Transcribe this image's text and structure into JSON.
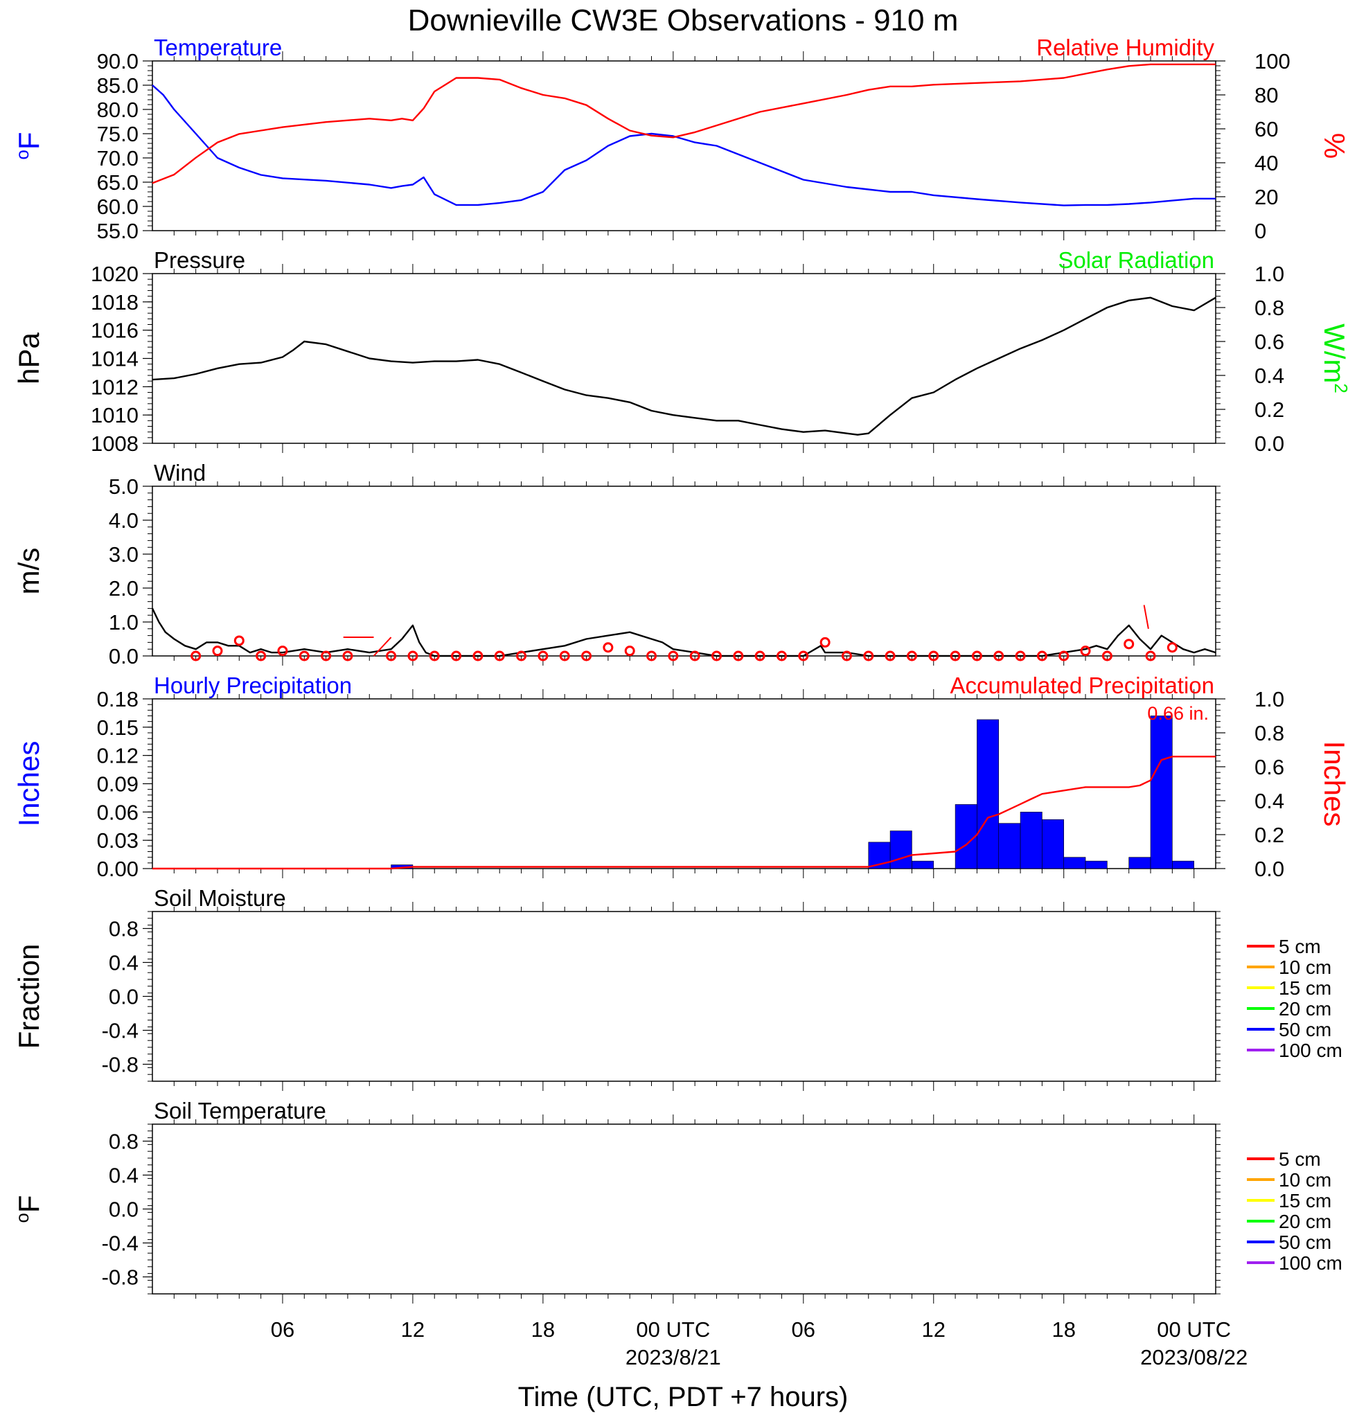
{
  "title": "Downieville CW3E Observations - 910 m",
  "x_axis": {
    "label": "Time (UTC, PDT +7 hours)",
    "ticks": [
      {
        "hour": 6,
        "label": "06"
      },
      {
        "hour": 12,
        "label": "12"
      },
      {
        "hour": 18,
        "label": "18"
      },
      {
        "hour": 24,
        "label": "00 UTC",
        "sub": "2023/8/21"
      },
      {
        "hour": 30,
        "label": "06"
      },
      {
        "hour": 36,
        "label": "12"
      },
      {
        "hour": 42,
        "label": "18"
      },
      {
        "hour": 48,
        "label": "00 UTC",
        "sub": "2023/08/22"
      }
    ],
    "range_hours": [
      0,
      49
    ]
  },
  "colors": {
    "temperature": "#0000ff",
    "humidity": "#ff0000",
    "pressure": "#000000",
    "solar": "#00ee00",
    "wind": "#000000",
    "gust": "#ff0000",
    "hourly_precip": "#0000ff",
    "accum_precip": "#ff0000"
  },
  "chart_data": [
    {
      "id": "temp_rh",
      "type": "line",
      "left_title": "Temperature",
      "right_title": "Relative Humidity",
      "left_unit": "oF",
      "right_unit": "%",
      "left_ylim": [
        55,
        90
      ],
      "left_ticks": [
        "90.0",
        "85.0",
        "80.0",
        "75.0",
        "70.0",
        "65.0",
        "60.0",
        "55.0"
      ],
      "right_ylim": [
        0,
        100
      ],
      "right_ticks": [
        "100",
        "80",
        "60",
        "40",
        "20",
        "0"
      ],
      "series": [
        {
          "name": "Temperature",
          "axis": "left",
          "x": [
            0,
            0.5,
            1,
            2,
            3,
            4,
            5,
            6,
            8,
            10,
            11,
            11.5,
            12,
            12.5,
            13,
            14,
            15,
            16,
            17,
            18,
            19,
            20,
            21,
            22,
            23,
            24,
            25,
            26,
            28,
            30,
            32,
            33,
            34,
            35,
            36,
            38,
            40,
            42,
            43,
            44,
            45,
            46,
            47,
            48,
            49
          ],
          "y": [
            85,
            83,
            80,
            75,
            70,
            68,
            66.5,
            65.8,
            65.3,
            64.5,
            63.8,
            64.2,
            64.5,
            66,
            62.5,
            60.3,
            60.3,
            60.7,
            61.3,
            63,
            67.5,
            69.5,
            72.5,
            74.5,
            75,
            74.5,
            73.2,
            72.5,
            69,
            65.5,
            64,
            63.5,
            63,
            63,
            62.3,
            61.5,
            60.8,
            60.2,
            60.3,
            60.3,
            60.5,
            60.8,
            61.2,
            61.6,
            61.6
          ]
        },
        {
          "name": "Relative Humidity",
          "axis": "right",
          "x": [
            0,
            1,
            2,
            3,
            4,
            5,
            6,
            8,
            10,
            11,
            11.5,
            12,
            12.5,
            13,
            14,
            15,
            16,
            17,
            18,
            19,
            20,
            21,
            22,
            23,
            24,
            25,
            26,
            28,
            30,
            32,
            33,
            34,
            35,
            36,
            38,
            40,
            42,
            44,
            45,
            46,
            47,
            48,
            49
          ],
          "y": [
            28,
            33,
            43,
            52,
            57,
            59,
            61,
            64,
            66,
            65,
            66,
            65,
            72,
            82,
            90,
            90,
            89,
            84,
            80,
            78,
            74,
            66,
            59,
            56,
            55,
            58,
            62,
            70,
            75,
            80,
            83,
            85,
            85,
            86,
            87,
            88,
            90,
            95,
            97,
            98,
            98,
            98,
            98
          ]
        }
      ]
    },
    {
      "id": "pressure_solar",
      "type": "line",
      "left_title": "Pressure",
      "right_title": "Solar Radiation",
      "left_unit": "hPa",
      "right_unit": "W/m2",
      "left_ylim": [
        1008,
        1020
      ],
      "left_ticks": [
        "1020",
        "1018",
        "1016",
        "1014",
        "1012",
        "1010",
        "1008"
      ],
      "right_ylim": [
        0,
        1
      ],
      "right_ticks": [
        "1.0",
        "0.8",
        "0.6",
        "0.4",
        "0.2",
        "0.0"
      ],
      "series": [
        {
          "name": "Pressure",
          "axis": "left",
          "x": [
            0,
            1,
            2,
            3,
            4,
            5,
            6,
            6.5,
            7,
            8,
            9,
            10,
            11,
            12,
            13,
            14,
            15,
            16,
            17,
            18,
            19,
            20,
            21,
            22,
            23,
            24,
            25,
            26,
            27,
            28,
            29,
            30,
            31,
            32,
            32.5,
            33,
            34,
            35,
            36,
            37,
            38,
            39,
            40,
            41,
            42,
            43,
            44,
            45,
            46,
            47,
            48,
            49
          ],
          "y": [
            1012.5,
            1012.6,
            1012.9,
            1013.3,
            1013.6,
            1013.7,
            1014.1,
            1014.6,
            1015.2,
            1015,
            1014.5,
            1014,
            1013.8,
            1013.7,
            1013.8,
            1013.8,
            1013.9,
            1013.6,
            1013,
            1012.4,
            1011.8,
            1011.4,
            1011.2,
            1010.9,
            1010.3,
            1010,
            1009.8,
            1009.6,
            1009.6,
            1009.3,
            1009.0,
            1008.8,
            1008.9,
            1008.7,
            1008.6,
            1008.7,
            1010,
            1011.2,
            1011.6,
            1012.5,
            1013.3,
            1014,
            1014.7,
            1015.3,
            1016,
            1016.8,
            1017.6,
            1018.1,
            1018.3,
            1017.7,
            1017.4,
            1018.3
          ]
        },
        {
          "name": "Solar Radiation",
          "axis": "right",
          "x": [],
          "y": []
        }
      ]
    },
    {
      "id": "wind",
      "type": "line",
      "left_title": "Wind",
      "left_unit": "m/s",
      "left_ylim": [
        0,
        5
      ],
      "left_ticks": [
        "5.0",
        "4.0",
        "3.0",
        "2.0",
        "1.0",
        "0.0"
      ],
      "series": [
        {
          "name": "Wind speed",
          "axis": "left",
          "x": [
            0,
            0.3,
            0.6,
            1,
            1.5,
            2,
            2.5,
            3,
            3.5,
            4,
            4.5,
            5,
            5.5,
            6,
            7,
            8,
            9,
            10,
            11,
            11.5,
            12,
            12.3,
            12.6,
            13,
            14,
            15,
            16,
            17,
            18,
            19,
            20,
            21,
            22,
            23,
            23.5,
            24,
            25,
            26,
            27,
            28,
            29,
            30,
            30.8,
            31,
            32,
            33,
            34,
            35,
            36,
            37,
            38,
            39,
            40,
            41,
            42,
            43,
            43.5,
            44,
            44.5,
            45,
            45.5,
            46,
            46.5,
            47,
            47.5,
            48,
            48.5,
            49
          ],
          "y": [
            1.4,
            1.0,
            0.7,
            0.5,
            0.3,
            0.2,
            0.4,
            0.4,
            0.3,
            0.3,
            0.1,
            0.2,
            0.1,
            0.1,
            0.2,
            0.1,
            0.2,
            0.1,
            0.2,
            0.5,
            0.9,
            0.4,
            0.1,
            0.0,
            0.0,
            0.0,
            0.0,
            0.1,
            0.2,
            0.3,
            0.5,
            0.6,
            0.7,
            0.5,
            0.4,
            0.2,
            0.1,
            0.0,
            0.0,
            0.0,
            0.0,
            0.0,
            0.3,
            0.1,
            0.1,
            0.0,
            0.0,
            0.0,
            0.0,
            0.0,
            0.0,
            0.0,
            0.0,
            0.0,
            0.1,
            0.2,
            0.3,
            0.2,
            0.6,
            0.9,
            0.5,
            0.2,
            0.6,
            0.4,
            0.2,
            0.1,
            0.2,
            0.1
          ]
        },
        {
          "name": "Gust",
          "axis": "left",
          "type": "scatter",
          "x": [
            2,
            3,
            4,
            5,
            6,
            7,
            8,
            9,
            11,
            12,
            13,
            14,
            15,
            16,
            17,
            18,
            19,
            20,
            21,
            22,
            23,
            24,
            25,
            26,
            27,
            28,
            29,
            30,
            31,
            32,
            33,
            34,
            35,
            36,
            37,
            38,
            39,
            40,
            41,
            42,
            43,
            44,
            45,
            46,
            47
          ],
          "y": [
            0.0,
            0.15,
            0.45,
            0.0,
            0.15,
            0.0,
            0.0,
            0.0,
            0.0,
            0.0,
            0.0,
            0.0,
            0.0,
            0.0,
            0.0,
            0.0,
            0.0,
            0.0,
            0.25,
            0.15,
            0.0,
            0.0,
            0.0,
            0.0,
            0.0,
            0.0,
            0.0,
            0.0,
            0.4,
            0.0,
            0.0,
            0.0,
            0.0,
            0.0,
            0.0,
            0.0,
            0.0,
            0.0,
            0.0,
            0.0,
            0.15,
            0.0,
            0.35,
            0.0,
            0.25
          ]
        },
        {
          "name": "Wind direction mark 1",
          "axis": "left",
          "type": "segments",
          "segments": [
            [
              8.8,
              0.55,
              10.2,
              0.55
            ],
            [
              10.2,
              0.0,
              11.0,
              0.55
            ],
            [
              45.7,
              1.5,
              45.9,
              0.8
            ]
          ]
        }
      ]
    },
    {
      "id": "precip",
      "type": "bar",
      "left_title": "Hourly Precipitation",
      "right_title": "Accumulated Precipitation",
      "left_unit": "Inches",
      "right_unit": "Inches",
      "annotation": "0.66 in.",
      "left_ylim": [
        0,
        0.18
      ],
      "left_ticks": [
        "0.18",
        "0.15",
        "0.12",
        "0.09",
        "0.06",
        "0.03",
        "0.00"
      ],
      "right_ylim": [
        0,
        1
      ],
      "right_ticks": [
        "1.0",
        "0.8",
        "0.6",
        "0.4",
        "0.2",
        "0.0"
      ],
      "bars": {
        "hour_start": [
          11,
          33,
          34,
          35,
          37,
          38,
          39,
          40,
          41,
          42,
          43,
          45,
          46,
          47
        ],
        "values": [
          0.004,
          0.028,
          0.04,
          0.008,
          0.068,
          0.158,
          0.048,
          0.06,
          0.052,
          0.012,
          0.008,
          0.012,
          0.162,
          0.008
        ]
      },
      "series": [
        {
          "name": "Accumulated Precipitation",
          "axis": "right",
          "x": [
            0,
            11,
            12,
            33,
            34,
            35,
            36,
            37,
            37.5,
            38,
            38.5,
            39,
            39.5,
            40,
            40.5,
            41,
            42,
            43,
            44,
            45,
            45.5,
            46,
            46.5,
            47,
            48,
            49
          ],
          "y": [
            0,
            0,
            0.01,
            0.01,
            0.04,
            0.08,
            0.09,
            0.1,
            0.14,
            0.2,
            0.3,
            0.32,
            0.35,
            0.38,
            0.41,
            0.44,
            0.46,
            0.48,
            0.48,
            0.48,
            0.49,
            0.52,
            0.64,
            0.66,
            0.66,
            0.66
          ]
        }
      ]
    },
    {
      "id": "soil_moisture",
      "type": "line",
      "left_title": "Soil Moisture",
      "left_unit": "Fraction",
      "left_ylim": [
        -1,
        1
      ],
      "left_ticks": [
        "0.8",
        "0.4",
        "0.0",
        "-0.4",
        "-0.8"
      ],
      "legend": [
        "5 cm",
        "10 cm",
        "15 cm",
        "20 cm",
        "50 cm",
        "100 cm"
      ],
      "legend_colors": [
        "#ff0000",
        "#ffa500",
        "#ffff00",
        "#00ff00",
        "#0000ff",
        "#a020f0"
      ],
      "series": []
    },
    {
      "id": "soil_temp",
      "type": "line",
      "left_title": "Soil Temperature",
      "left_unit": "oF",
      "left_ylim": [
        -1,
        1
      ],
      "left_ticks": [
        "0.8",
        "0.4",
        "0.0",
        "-0.4",
        "-0.8"
      ],
      "legend": [
        "5 cm",
        "10 cm",
        "15 cm",
        "20 cm",
        "50 cm",
        "100 cm"
      ],
      "legend_colors": [
        "#ff0000",
        "#ffa500",
        "#ffff00",
        "#00ff00",
        "#0000ff",
        "#a020f0"
      ],
      "series": []
    }
  ]
}
